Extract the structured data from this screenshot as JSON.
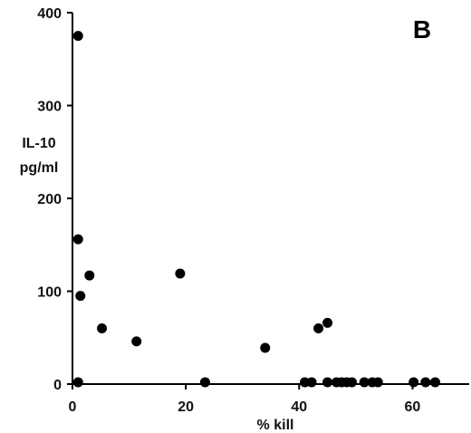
{
  "chart_data": {
    "type": "scatter",
    "panel_label": "B",
    "xlabel": "% kill",
    "ylabel_lines": [
      "IL-10",
      "pg/ml"
    ],
    "xlim": [
      0,
      70
    ],
    "ylim": [
      0,
      400
    ],
    "xticks": [
      0,
      20,
      40,
      60
    ],
    "yticks": [
      0,
      100,
      200,
      300,
      400
    ],
    "xtick_labels": [
      "0",
      "20",
      "40",
      "60"
    ],
    "ytick_labels": [
      "0",
      "100",
      "200",
      "300",
      "400"
    ],
    "grid": false,
    "marker_color": "#000000",
    "points": [
      {
        "x": 1.0,
        "y": 375
      },
      {
        "x": 1.0,
        "y": 156
      },
      {
        "x": 3.0,
        "y": 117
      },
      {
        "x": 1.4,
        "y": 95
      },
      {
        "x": 5.2,
        "y": 60
      },
      {
        "x": 11.3,
        "y": 46
      },
      {
        "x": 19.0,
        "y": 119
      },
      {
        "x": 1.0,
        "y": 2
      },
      {
        "x": 23.4,
        "y": 2
      },
      {
        "x": 34.0,
        "y": 39
      },
      {
        "x": 43.4,
        "y": 60
      },
      {
        "x": 45.0,
        "y": 66
      },
      {
        "x": 41.0,
        "y": 2
      },
      {
        "x": 42.2,
        "y": 2
      },
      {
        "x": 45.0,
        "y": 2
      },
      {
        "x": 46.6,
        "y": 2
      },
      {
        "x": 47.5,
        "y": 2
      },
      {
        "x": 48.4,
        "y": 2
      },
      {
        "x": 49.3,
        "y": 2
      },
      {
        "x": 51.5,
        "y": 2
      },
      {
        "x": 52.9,
        "y": 2
      },
      {
        "x": 53.9,
        "y": 2
      },
      {
        "x": 60.2,
        "y": 2
      },
      {
        "x": 62.3,
        "y": 2
      },
      {
        "x": 64.0,
        "y": 2
      }
    ]
  }
}
